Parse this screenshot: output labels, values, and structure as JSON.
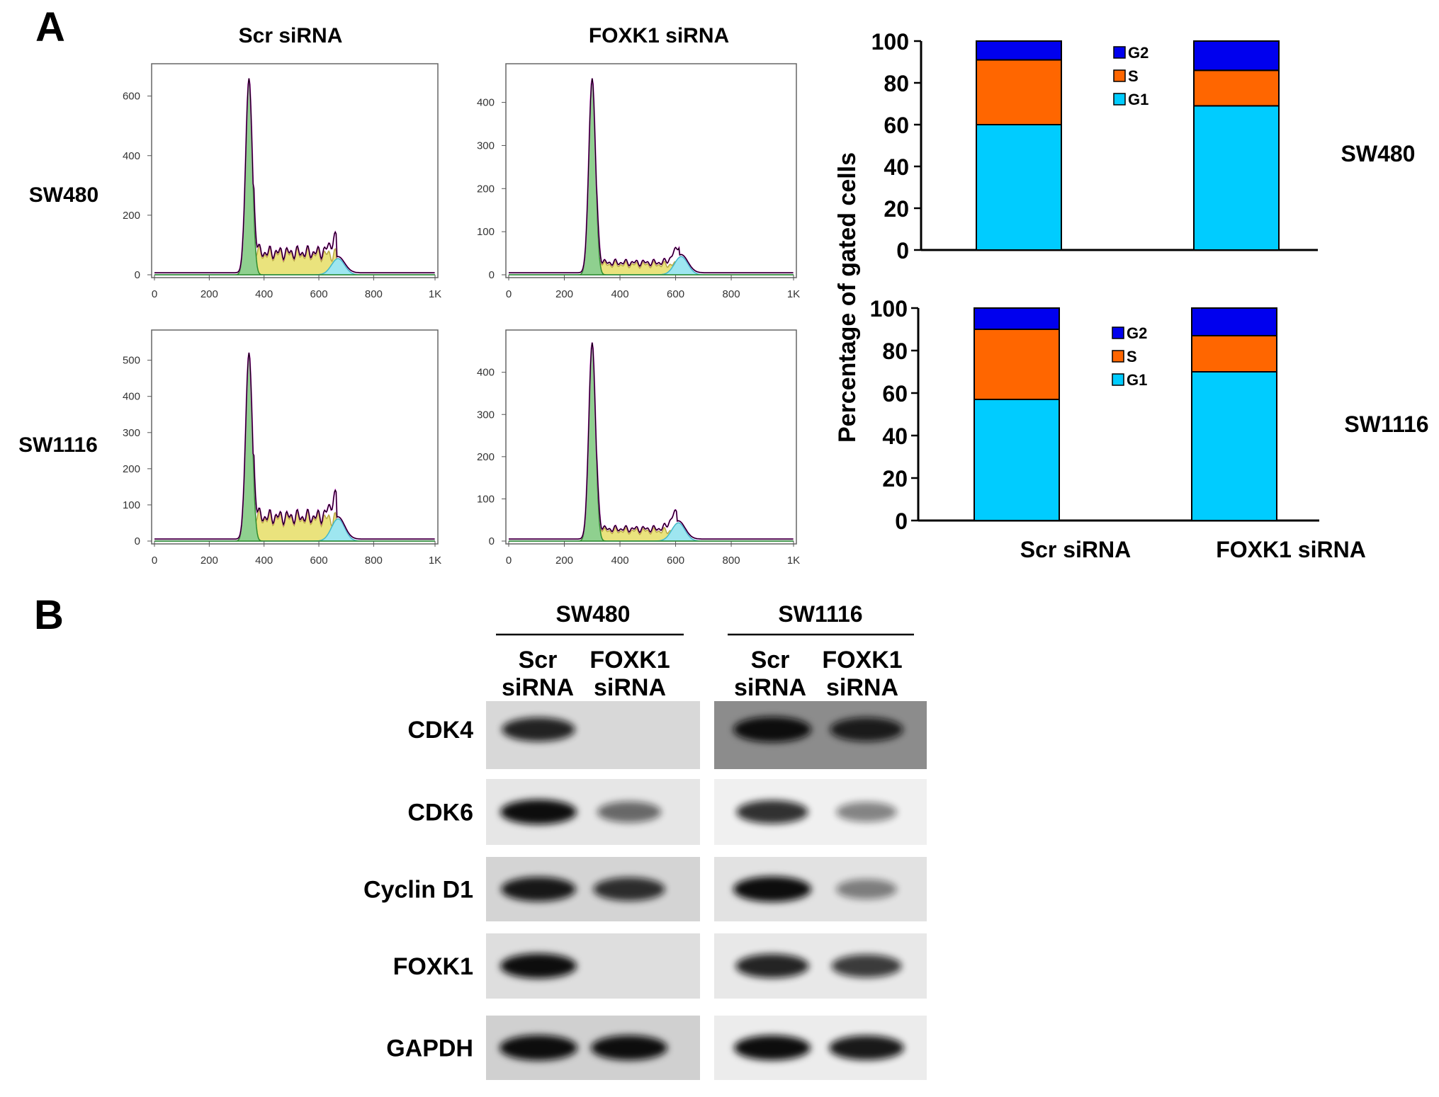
{
  "panel_a": {
    "letter": "A",
    "columns": [
      "Scr siRNA",
      "FOXK1 siRNA"
    ],
    "rows": [
      "SW480",
      "SW1116"
    ],
    "histograms": [
      {
        "row": "SW480",
        "column": "Scr siRNA",
        "x_ticks": [
          "0",
          "200",
          "400",
          "600",
          "800",
          "1K"
        ],
        "y_ticks": [
          "0",
          "200",
          "400",
          "600"
        ],
        "y_max": 680,
        "g1_peak_channel": 345
      },
      {
        "row": "SW480",
        "column": "FOXK1 siRNA",
        "x_ticks": [
          "0",
          "200",
          "400",
          "600",
          "800",
          "1K"
        ],
        "y_ticks": [
          "0",
          "100",
          "200",
          "300",
          "400"
        ],
        "y_max": 470,
        "g1_peak_channel": 300
      },
      {
        "row": "SW1116",
        "column": "Scr siRNA",
        "x_ticks": [
          "0",
          "200",
          "400",
          "600",
          "800",
          "1K"
        ],
        "y_ticks": [
          "0",
          "100",
          "200",
          "300",
          "400",
          "500"
        ],
        "y_max": 560,
        "g1_peak_channel": 345
      },
      {
        "row": "SW1116",
        "column": "FOXK1 siRNA",
        "x_ticks": [
          "0",
          "200",
          "400",
          "600",
          "800",
          "1K"
        ],
        "y_ticks": [
          "0",
          "100",
          "200",
          "300",
          "400"
        ],
        "y_max": 480,
        "g1_peak_channel": 300
      }
    ]
  },
  "chart_data": [
    {
      "type": "bar",
      "stacked": true,
      "categories": [
        "Scr siRNA",
        "FOXK1 siRNA"
      ],
      "series": [
        {
          "name": "G1",
          "values": [
            60,
            69
          ],
          "color": "#00ccff"
        },
        {
          "name": "S",
          "values": [
            31,
            17
          ],
          "color": "#ff6600"
        },
        {
          "name": "G2",
          "values": [
            9,
            14
          ],
          "color": "#0000ee"
        }
      ],
      "side_label": "SW480",
      "ylim": [
        0,
        100
      ],
      "yticks": [
        0,
        20,
        40,
        60,
        80,
        100
      ],
      "legend": [
        "G2",
        "S",
        "G1"
      ],
      "legend_position": "top-center"
    },
    {
      "type": "bar",
      "stacked": true,
      "categories": [
        "Scr siRNA",
        "FOXK1 siRNA"
      ],
      "series": [
        {
          "name": "G1",
          "values": [
            57,
            70
          ],
          "color": "#00ccff"
        },
        {
          "name": "S",
          "values": [
            33,
            17
          ],
          "color": "#ff6600"
        },
        {
          "name": "G2",
          "values": [
            10,
            13
          ],
          "color": "#0000ee"
        }
      ],
      "side_label": "SW1116",
      "ylim": [
        0,
        100
      ],
      "yticks": [
        0,
        20,
        40,
        60,
        80,
        100
      ],
      "legend": [
        "G2",
        "S",
        "G1"
      ],
      "legend_position": "top-center"
    }
  ],
  "bar_ylabel": "Percentage of gated cells",
  "panel_b": {
    "letter": "B",
    "groups": [
      {
        "name": "SW480",
        "lanes": [
          [
            "Scr",
            "siRNA"
          ],
          [
            "FOXK1",
            "siRNA"
          ]
        ]
      },
      {
        "name": "SW1116",
        "lanes": [
          [
            "Scr",
            "siRNA"
          ],
          [
            "FOXK1",
            "siRNA"
          ]
        ]
      }
    ],
    "proteins": [
      "CDK4",
      "CDK6",
      "Cyclin D1",
      "FOXK1",
      "GAPDH"
    ],
    "band_intensity": [
      [
        [
          0.85,
          0.0
        ],
        [
          1.0,
          0.85
        ]
      ],
      [
        [
          0.95,
          0.55
        ],
        [
          0.8,
          0.45
        ]
      ],
      [
        [
          0.9,
          0.8
        ],
        [
          1.0,
          0.45
        ]
      ],
      [
        [
          0.95,
          0.0
        ],
        [
          0.85,
          0.75
        ]
      ],
      [
        [
          1.0,
          0.95
        ],
        [
          0.95,
          0.9
        ]
      ]
    ]
  }
}
